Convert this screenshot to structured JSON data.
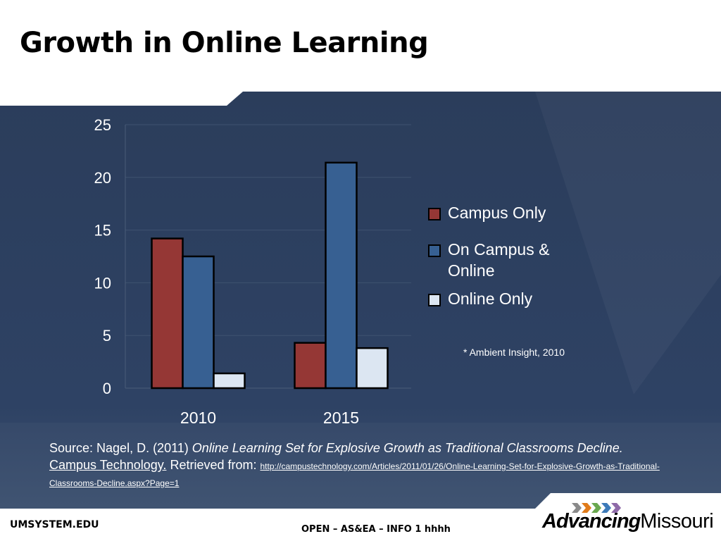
{
  "slide": {
    "title": "Growth in Online Learning",
    "footer_left": "UMSYSTEM.EDU",
    "footer_center": "OPEN – AS&EA – INFO 1 hhhh",
    "logo_bold": "Advancing",
    "logo_regular": "Missouri"
  },
  "note": "* Ambient Insight, 2010",
  "source": {
    "prefix": "Source: Nagel, D. (2011) ",
    "italic_title": "Online Learning Set for Explosive Growth as Traditional Classrooms Decline.",
    "publication": "Campus Technology.",
    "retrieved": " Retrieved from: ",
    "url": "http://campustechnology.com/Articles/2011/01/26/Online-Learning-Set-for-Explosive-Growth-as-Traditional-Classrooms-Decline.aspx?Page=1"
  },
  "colors": {
    "background": "#2b3d5b",
    "campus_only": "#953735",
    "on_campus_online": "#376092",
    "online_only": "#dce6f2"
  },
  "chart_data": {
    "type": "bar",
    "categories": [
      "2010",
      "2015"
    ],
    "series": [
      {
        "name": "Campus Only",
        "values": [
          14.2,
          4.3
        ]
      },
      {
        "name": "On Campus & Online",
        "values": [
          12.5,
          21.4
        ]
      },
      {
        "name": "Online Only",
        "values": [
          1.4,
          3.8
        ]
      }
    ],
    "ylim": [
      0,
      25
    ],
    "yticks": [
      "0",
      "5",
      "10",
      "15",
      "20",
      "25"
    ],
    "grid": true,
    "legend": "right"
  }
}
